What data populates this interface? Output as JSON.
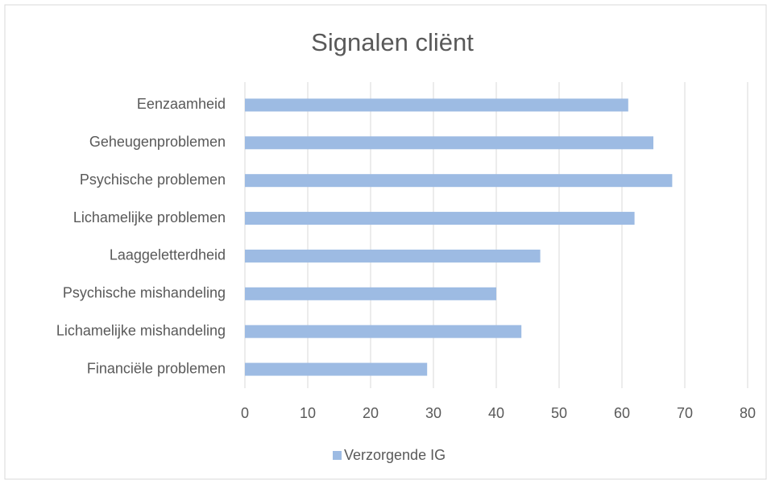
{
  "chart_data": {
    "type": "bar",
    "orientation": "horizontal",
    "title": "Signalen cliënt",
    "categories": [
      "Eenzaamheid",
      "Geheugenproblemen",
      "Psychische problemen",
      "Lichamelijke problemen",
      "Laaggeletterdheid",
      "Psychische mishandeling",
      "Lichamelijke mishandeling",
      "Financiële problemen"
    ],
    "series": [
      {
        "name": "Verzorgende IG",
        "color": "#9dbbe3",
        "values": [
          61,
          65,
          68,
          62,
          47,
          40,
          44,
          29
        ]
      }
    ],
    "xlim": [
      0,
      80
    ],
    "xticks": [
      0,
      10,
      20,
      30,
      40,
      50,
      60,
      70,
      80
    ],
    "grid": true,
    "legend": "bottom"
  }
}
